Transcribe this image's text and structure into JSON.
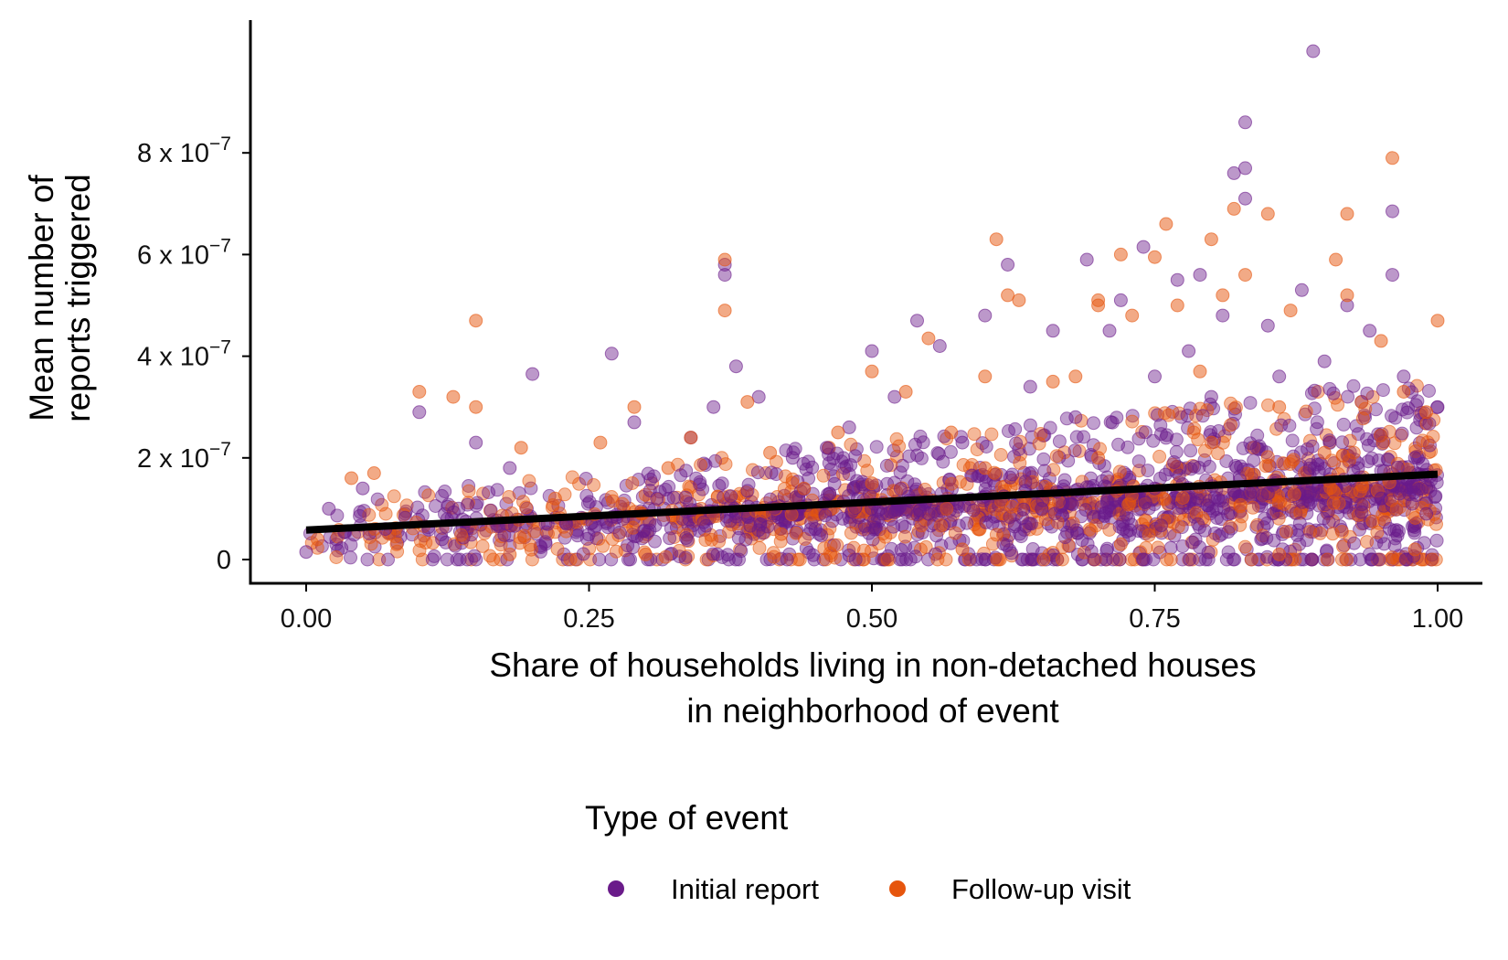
{
  "chart_data": {
    "type": "scatter",
    "title": "",
    "xlabel": [
      "Share of households living in non-detached houses",
      "in neighborhood of event"
    ],
    "ylabel": [
      "Mean number of",
      "reports triggered"
    ],
    "xlim": [
      -0.05,
      1.04
    ],
    "ylim": [
      -5e-08,
      1.06e-06
    ],
    "x_ticks": [
      0,
      0.25,
      0.5,
      0.75,
      1.0
    ],
    "x_tick_labels": [
      "0.00",
      "0.25",
      "0.50",
      "0.75",
      "1.00"
    ],
    "y_ticks": [
      0,
      2e-07,
      4e-07,
      6e-07,
      8e-07
    ],
    "y_tick_labels": [
      {
        "text": "0",
        "exp": ""
      },
      {
        "text": "2 x 10",
        "exp": "−7"
      },
      {
        "text": "4 x 10",
        "exp": "−7"
      },
      {
        "text": "6 x 10",
        "exp": "−7"
      },
      {
        "text": "8 x 10",
        "exp": "−7"
      }
    ],
    "grid": false,
    "legend": {
      "title": "Type of event",
      "position": "bottom"
    },
    "series": [
      {
        "name": "Initial report",
        "color": "#6a1b8a",
        "points": [
          [
            0.0,
            1.5e-08
          ],
          [
            0.02,
            1e-07
          ],
          [
            0.05,
            1.4e-07
          ],
          [
            0.07,
            6e-08
          ],
          [
            0.1,
            2.9e-07
          ],
          [
            0.12,
            4e-08
          ],
          [
            0.15,
            2.3e-07
          ],
          [
            0.18,
            1.8e-07
          ],
          [
            0.2,
            3.65e-07
          ],
          [
            0.23,
            7e-08
          ],
          [
            0.27,
            4.05e-07
          ],
          [
            0.29,
            2.7e-07
          ],
          [
            0.31,
            1.2e-07
          ],
          [
            0.34,
            2.4e-07
          ],
          [
            0.36,
            3e-07
          ],
          [
            0.37,
            5.6e-07
          ],
          [
            0.37,
            5.8e-07
          ],
          [
            0.38,
            3.8e-07
          ],
          [
            0.4,
            3.2e-07
          ],
          [
            0.43,
            2e-07
          ],
          [
            0.46,
            2.2e-07
          ],
          [
            0.48,
            2.6e-07
          ],
          [
            0.5,
            4.1e-07
          ],
          [
            0.52,
            3.2e-07
          ],
          [
            0.54,
            4.7e-07
          ],
          [
            0.56,
            4.2e-07
          ],
          [
            0.58,
            2.3e-07
          ],
          [
            0.6,
            4.8e-07
          ],
          [
            0.62,
            5.8e-07
          ],
          [
            0.64,
            3.4e-07
          ],
          [
            0.66,
            4.5e-07
          ],
          [
            0.68,
            2.8e-07
          ],
          [
            0.69,
            5.9e-07
          ],
          [
            0.71,
            4.5e-07
          ],
          [
            0.72,
            5.1e-07
          ],
          [
            0.74,
            6.15e-07
          ],
          [
            0.75,
            3.6e-07
          ],
          [
            0.77,
            5.5e-07
          ],
          [
            0.78,
            4.1e-07
          ],
          [
            0.79,
            5.6e-07
          ],
          [
            0.8,
            3.2e-07
          ],
          [
            0.81,
            4.8e-07
          ],
          [
            0.82,
            7.6e-07
          ],
          [
            0.83,
            7.7e-07
          ],
          [
            0.83,
            8.6e-07
          ],
          [
            0.83,
            7.1e-07
          ],
          [
            0.85,
            4.6e-07
          ],
          [
            0.86,
            3.6e-07
          ],
          [
            0.88,
            5.3e-07
          ],
          [
            0.89,
            1e-06
          ],
          [
            0.9,
            3.9e-07
          ],
          [
            0.92,
            5e-07
          ],
          [
            0.94,
            4.5e-07
          ],
          [
            0.96,
            6.85e-07
          ],
          [
            0.96,
            5.6e-07
          ],
          [
            0.97,
            3.6e-07
          ],
          [
            0.98,
            2e-07
          ],
          [
            1.0,
            3e-07
          ],
          [
            0.99,
            9e-08
          ],
          [
            0.45,
            6e-08
          ],
          [
            0.55,
            9e-08
          ],
          [
            0.65,
            1e-07
          ],
          [
            0.75,
            1.4e-07
          ],
          [
            0.85,
            1.3e-07
          ],
          [
            0.95,
            1.2e-07
          ]
        ]
      },
      {
        "name": "Follow-up visit",
        "color": "#e6550d",
        "points": [
          [
            0.01,
            4e-08
          ],
          [
            0.04,
            1.6e-07
          ],
          [
            0.06,
            1.7e-07
          ],
          [
            0.1,
            3.3e-07
          ],
          [
            0.13,
            3.2e-07
          ],
          [
            0.15,
            4.7e-07
          ],
          [
            0.15,
            3e-07
          ],
          [
            0.19,
            2.2e-07
          ],
          [
            0.22,
            1.2e-07
          ],
          [
            0.26,
            2.3e-07
          ],
          [
            0.29,
            3e-07
          ],
          [
            0.32,
            1.8e-07
          ],
          [
            0.34,
            2.4e-07
          ],
          [
            0.37,
            5.9e-07
          ],
          [
            0.37,
            4.9e-07
          ],
          [
            0.39,
            3.1e-07
          ],
          [
            0.41,
            2.1e-07
          ],
          [
            0.44,
            1.4e-07
          ],
          [
            0.47,
            2.5e-07
          ],
          [
            0.5,
            3.7e-07
          ],
          [
            0.53,
            3.3e-07
          ],
          [
            0.55,
            4.35e-07
          ],
          [
            0.57,
            2.5e-07
          ],
          [
            0.6,
            3.6e-07
          ],
          [
            0.61,
            6.3e-07
          ],
          [
            0.62,
            5.2e-07
          ],
          [
            0.63,
            5.1e-07
          ],
          [
            0.66,
            3.5e-07
          ],
          [
            0.68,
            3.6e-07
          ],
          [
            0.7,
            5.1e-07
          ],
          [
            0.7,
            5e-07
          ],
          [
            0.72,
            6e-07
          ],
          [
            0.73,
            4.8e-07
          ],
          [
            0.75,
            5.95e-07
          ],
          [
            0.76,
            6.6e-07
          ],
          [
            0.77,
            5e-07
          ],
          [
            0.79,
            3.7e-07
          ],
          [
            0.8,
            6.3e-07
          ],
          [
            0.81,
            5.2e-07
          ],
          [
            0.82,
            6.9e-07
          ],
          [
            0.83,
            5.6e-07
          ],
          [
            0.85,
            6.8e-07
          ],
          [
            0.86,
            3e-07
          ],
          [
            0.87,
            4.9e-07
          ],
          [
            0.91,
            5.9e-07
          ],
          [
            0.92,
            6.8e-07
          ],
          [
            0.92,
            5.2e-07
          ],
          [
            0.95,
            4.3e-07
          ],
          [
            0.96,
            7.9e-07
          ],
          [
            0.97,
            3.3e-07
          ],
          [
            0.99,
            2.9e-07
          ],
          [
            1.0,
            4.7e-07
          ],
          [
            0.08,
            3e-08
          ],
          [
            0.18,
            1e-08
          ],
          [
            0.3,
            1e-08
          ],
          [
            0.42,
            5e-08
          ],
          [
            0.58,
            2e-08
          ],
          [
            0.72,
            3e-08
          ],
          [
            0.86,
            1e-08
          ],
          [
            0.98,
            2e-08
          ],
          [
            0.5,
            1.5e-07
          ],
          [
            0.6,
            1.8e-07
          ],
          [
            0.7,
            2e-07
          ],
          [
            0.8,
            2.3e-07
          ],
          [
            0.9,
            2.1e-07
          ]
        ]
      }
    ],
    "trend_line": {
      "x": [
        0.0,
        1.0
      ],
      "y": [
        5.8e-08,
        1.68e-07
      ],
      "color": "#000000"
    },
    "cloud": {
      "count": 2200,
      "x_range": [
        0.0,
        1.0
      ],
      "y_typical_max": 3.4e-07
    }
  }
}
